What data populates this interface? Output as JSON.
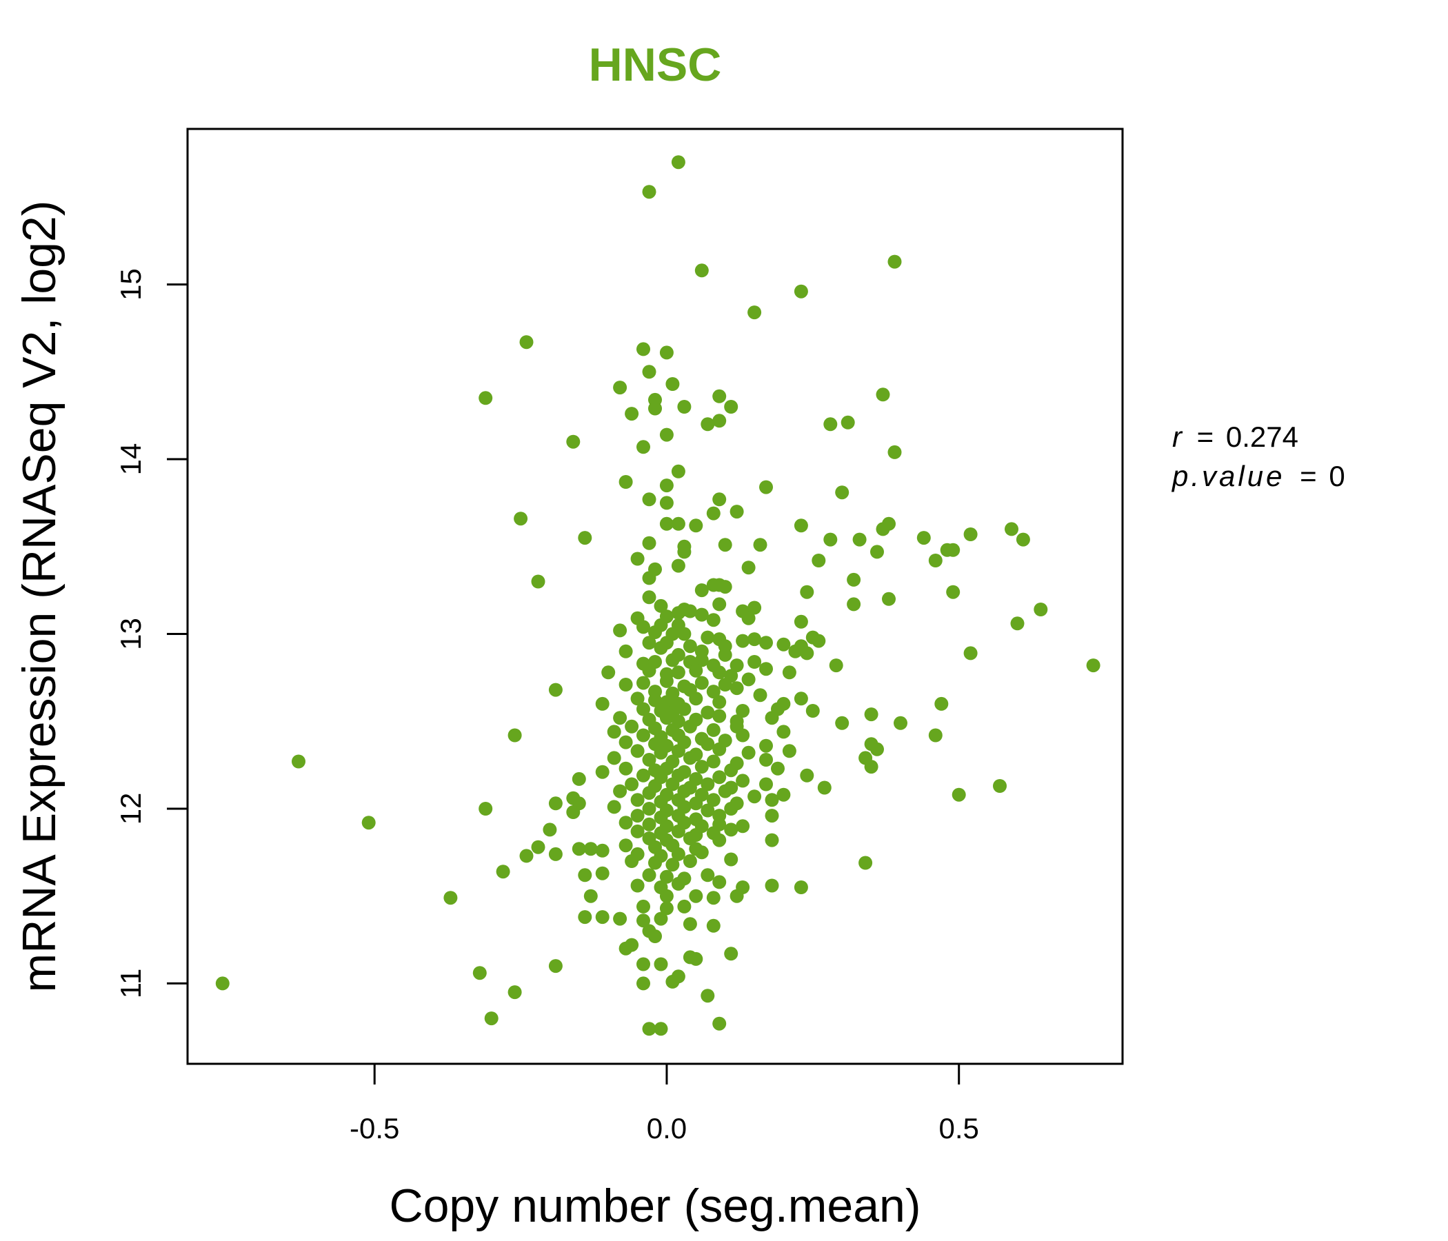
{
  "chart_data": {
    "type": "scatter",
    "title": "HNSC",
    "xlabel": "Copy number (seg.mean)",
    "ylabel": "mRNA Expression (RNASeq V2, log2)",
    "xlim": [
      -0.82,
      0.78
    ],
    "ylim": [
      10.54,
      15.89
    ],
    "xticks": [
      -0.5,
      0.0,
      0.5
    ],
    "xtick_labels": [
      "-0.5",
      "0.0",
      "0.5"
    ],
    "yticks": [
      11,
      12,
      13,
      14,
      15
    ],
    "ytick_labels": [
      "11",
      "12",
      "13",
      "14",
      "15"
    ],
    "grid": false,
    "legend": "none",
    "color": "#66A61E",
    "annotation": {
      "r_label": "r",
      "r_value": "0.274",
      "p_label": "p.value",
      "p_value": "0"
    },
    "points": [
      [
        0.02,
        15.7
      ],
      [
        -0.03,
        15.53
      ],
      [
        0.06,
        15.08
      ],
      [
        0.39,
        15.13
      ],
      [
        0.23,
        14.96
      ],
      [
        0.15,
        14.84
      ],
      [
        -0.24,
        14.67
      ],
      [
        -0.04,
        14.63
      ],
      [
        0.0,
        14.61
      ],
      [
        -0.03,
        14.5
      ],
      [
        0.01,
        14.43
      ],
      [
        -0.08,
        14.41
      ],
      [
        -0.31,
        14.35
      ],
      [
        -0.02,
        14.34
      ],
      [
        0.09,
        14.36
      ],
      [
        0.37,
        14.37
      ],
      [
        0.03,
        14.3
      ],
      [
        -0.02,
        14.29
      ],
      [
        0.11,
        14.3
      ],
      [
        -0.06,
        14.26
      ],
      [
        0.07,
        14.2
      ],
      [
        0.09,
        14.22
      ],
      [
        0.28,
        14.2
      ],
      [
        0.31,
        14.21
      ],
      [
        0.0,
        14.14
      ],
      [
        -0.16,
        14.1
      ],
      [
        -0.04,
        14.07
      ],
      [
        0.39,
        14.04
      ],
      [
        0.02,
        13.93
      ],
      [
        -0.07,
        13.87
      ],
      [
        0.0,
        13.85
      ],
      [
        0.17,
        13.84
      ],
      [
        0.3,
        13.81
      ],
      [
        -0.03,
        13.77
      ],
      [
        0.0,
        13.75
      ],
      [
        0.09,
        13.77
      ],
      [
        0.12,
        13.7
      ],
      [
        0.08,
        13.69
      ],
      [
        -0.25,
        13.66
      ],
      [
        0.0,
        13.63
      ],
      [
        0.02,
        13.63
      ],
      [
        0.05,
        13.62
      ],
      [
        0.23,
        13.62
      ],
      [
        0.38,
        13.63
      ],
      [
        0.37,
        13.6
      ],
      [
        0.59,
        13.6
      ],
      [
        -0.14,
        13.55
      ],
      [
        0.44,
        13.55
      ],
      [
        0.52,
        13.57
      ],
      [
        0.28,
        13.54
      ],
      [
        0.33,
        13.54
      ],
      [
        0.61,
        13.54
      ],
      [
        -0.03,
        13.52
      ],
      [
        0.03,
        13.5
      ],
      [
        0.1,
        13.51
      ],
      [
        0.16,
        13.51
      ],
      [
        0.03,
        13.47
      ],
      [
        0.36,
        13.47
      ],
      [
        0.48,
        13.48
      ],
      [
        0.49,
        13.48
      ],
      [
        -0.05,
        13.43
      ],
      [
        0.26,
        13.42
      ],
      [
        0.46,
        13.42
      ],
      [
        -0.02,
        13.37
      ],
      [
        0.02,
        13.39
      ],
      [
        0.14,
        13.38
      ],
      [
        -0.03,
        13.32
      ],
      [
        -0.22,
        13.3
      ],
      [
        0.32,
        13.31
      ],
      [
        0.08,
        13.28
      ],
      [
        0.09,
        13.28
      ],
      [
        0.1,
        13.27
      ],
      [
        0.06,
        13.25
      ],
      [
        0.24,
        13.24
      ],
      [
        0.49,
        13.24
      ],
      [
        -0.03,
        13.21
      ],
      [
        0.38,
        13.2
      ],
      [
        0.09,
        13.17
      ],
      [
        0.32,
        13.17
      ],
      [
        -0.01,
        13.16
      ],
      [
        0.03,
        13.14
      ],
      [
        0.02,
        13.12
      ],
      [
        0.04,
        13.13
      ],
      [
        0.13,
        13.13
      ],
      [
        0.15,
        13.15
      ],
      [
        0.64,
        13.14
      ],
      [
        -0.05,
        13.09
      ],
      [
        0.0,
        13.1
      ],
      [
        0.06,
        13.11
      ],
      [
        0.08,
        13.08
      ],
      [
        0.14,
        13.09
      ],
      [
        0.23,
        13.07
      ],
      [
        0.6,
        13.06
      ],
      [
        -0.04,
        13.04
      ],
      [
        -0.01,
        13.05
      ],
      [
        0.02,
        13.05
      ],
      [
        -0.08,
        13.02
      ],
      [
        -0.02,
        13.01
      ],
      [
        0.01,
        13.0
      ],
      [
        0.03,
        13.0
      ],
      [
        0.07,
        12.98
      ],
      [
        0.09,
        12.97
      ],
      [
        0.13,
        12.96
      ],
      [
        0.15,
        12.97
      ],
      [
        0.25,
        12.98
      ],
      [
        0.26,
        12.96
      ],
      [
        -0.03,
        12.95
      ],
      [
        0.0,
        12.95
      ],
      [
        0.04,
        12.93
      ],
      [
        0.1,
        12.93
      ],
      [
        0.17,
        12.95
      ],
      [
        0.2,
        12.94
      ],
      [
        0.23,
        12.93
      ],
      [
        -0.07,
        12.9
      ],
      [
        -0.01,
        12.92
      ],
      [
        0.02,
        12.88
      ],
      [
        0.06,
        12.9
      ],
      [
        0.1,
        12.88
      ],
      [
        0.22,
        12.9
      ],
      [
        0.24,
        12.89
      ],
      [
        0.52,
        12.89
      ],
      [
        -0.04,
        12.83
      ],
      [
        -0.02,
        12.84
      ],
      [
        0.01,
        12.85
      ],
      [
        0.04,
        12.84
      ],
      [
        0.06,
        12.85
      ],
      [
        0.08,
        12.82
      ],
      [
        0.12,
        12.82
      ],
      [
        0.15,
        12.84
      ],
      [
        0.29,
        12.82
      ],
      [
        0.73,
        12.82
      ],
      [
        -0.1,
        12.78
      ],
      [
        -0.03,
        12.79
      ],
      [
        0.0,
        12.77
      ],
      [
        0.02,
        12.78
      ],
      [
        0.05,
        12.79
      ],
      [
        0.09,
        12.78
      ],
      [
        0.11,
        12.76
      ],
      [
        0.17,
        12.8
      ],
      [
        0.21,
        12.78
      ],
      [
        -0.07,
        12.71
      ],
      [
        -0.04,
        12.72
      ],
      [
        0.0,
        12.73
      ],
      [
        0.03,
        12.7
      ],
      [
        0.06,
        12.72
      ],
      [
        0.1,
        12.71
      ],
      [
        0.14,
        12.74
      ],
      [
        -0.19,
        12.68
      ],
      [
        -0.02,
        12.67
      ],
      [
        0.01,
        12.66
      ],
      [
        0.04,
        12.68
      ],
      [
        0.08,
        12.67
      ],
      [
        0.12,
        12.69
      ],
      [
        0.16,
        12.65
      ],
      [
        -0.05,
        12.63
      ],
      [
        -0.02,
        12.62
      ],
      [
        0.0,
        12.61
      ],
      [
        0.02,
        12.6
      ],
      [
        0.05,
        12.63
      ],
      [
        0.09,
        12.61
      ],
      [
        0.2,
        12.6
      ],
      [
        0.23,
        12.63
      ],
      [
        0.47,
        12.6
      ],
      [
        -0.11,
        12.6
      ],
      [
        -0.04,
        12.57
      ],
      [
        -0.01,
        12.56
      ],
      [
        0.01,
        12.55
      ],
      [
        0.03,
        12.57
      ],
      [
        0.07,
        12.55
      ],
      [
        0.13,
        12.56
      ],
      [
        0.19,
        12.57
      ],
      [
        0.25,
        12.56
      ],
      [
        -0.08,
        12.52
      ],
      [
        -0.03,
        12.51
      ],
      [
        0.0,
        12.52
      ],
      [
        0.02,
        12.5
      ],
      [
        0.05,
        12.51
      ],
      [
        0.09,
        12.53
      ],
      [
        0.12,
        12.5
      ],
      [
        0.18,
        12.52
      ],
      [
        0.35,
        12.54
      ],
      [
        -0.06,
        12.47
      ],
      [
        -0.02,
        12.46
      ],
      [
        0.01,
        12.45
      ],
      [
        0.04,
        12.47
      ],
      [
        0.08,
        12.45
      ],
      [
        0.12,
        12.47
      ],
      [
        0.3,
        12.49
      ],
      [
        0.4,
        12.49
      ],
      [
        -0.09,
        12.44
      ],
      [
        -0.04,
        12.42
      ],
      [
        -0.01,
        12.41
      ],
      [
        0.02,
        12.42
      ],
      [
        0.06,
        12.4
      ],
      [
        0.13,
        12.42
      ],
      [
        0.2,
        12.44
      ],
      [
        -0.26,
        12.42
      ],
      [
        0.46,
        12.42
      ],
      [
        -0.07,
        12.38
      ],
      [
        -0.02,
        12.37
      ],
      [
        0.0,
        12.36
      ],
      [
        0.03,
        12.38
      ],
      [
        0.07,
        12.37
      ],
      [
        0.1,
        12.39
      ],
      [
        0.17,
        12.36
      ],
      [
        0.35,
        12.37
      ],
      [
        -0.05,
        12.33
      ],
      [
        -0.01,
        12.32
      ],
      [
        0.02,
        12.33
      ],
      [
        0.05,
        12.31
      ],
      [
        0.09,
        12.34
      ],
      [
        0.14,
        12.32
      ],
      [
        0.21,
        12.33
      ],
      [
        0.36,
        12.34
      ],
      [
        -0.09,
        12.29
      ],
      [
        -0.03,
        12.28
      ],
      [
        0.01,
        12.27
      ],
      [
        0.04,
        12.29
      ],
      [
        0.08,
        12.27
      ],
      [
        0.12,
        12.26
      ],
      [
        0.17,
        12.28
      ],
      [
        0.34,
        12.29
      ],
      [
        -0.63,
        12.27
      ],
      [
        -0.07,
        12.23
      ],
      [
        -0.02,
        12.22
      ],
      [
        0.0,
        12.23
      ],
      [
        0.03,
        12.21
      ],
      [
        0.06,
        12.24
      ],
      [
        0.11,
        12.22
      ],
      [
        0.19,
        12.23
      ],
      [
        0.35,
        12.24
      ],
      [
        -0.11,
        12.21
      ],
      [
        -0.04,
        12.19
      ],
      [
        -0.01,
        12.18
      ],
      [
        0.02,
        12.19
      ],
      [
        0.05,
        12.17
      ],
      [
        0.09,
        12.18
      ],
      [
        0.13,
        12.16
      ],
      [
        0.24,
        12.19
      ],
      [
        -0.15,
        12.17
      ],
      [
        -0.06,
        12.14
      ],
      [
        -0.02,
        12.13
      ],
      [
        0.01,
        12.14
      ],
      [
        0.04,
        12.12
      ],
      [
        0.07,
        12.14
      ],
      [
        0.11,
        12.12
      ],
      [
        0.17,
        12.14
      ],
      [
        0.27,
        12.12
      ],
      [
        0.57,
        12.13
      ],
      [
        -0.08,
        12.1
      ],
      [
        -0.03,
        12.09
      ],
      [
        0.0,
        12.08
      ],
      [
        0.03,
        12.1
      ],
      [
        0.06,
        12.08
      ],
      [
        0.1,
        12.1
      ],
      [
        0.15,
        12.07
      ],
      [
        0.2,
        12.08
      ],
      [
        -0.16,
        12.06
      ],
      [
        -0.05,
        12.05
      ],
      [
        -0.01,
        12.04
      ],
      [
        0.02,
        12.05
      ],
      [
        0.05,
        12.03
      ],
      [
        0.08,
        12.05
      ],
      [
        0.12,
        12.03
      ],
      [
        0.18,
        12.05
      ],
      [
        0.5,
        12.08
      ],
      [
        -0.19,
        12.03
      ],
      [
        -0.15,
        12.03
      ],
      [
        -0.09,
        12.01
      ],
      [
        -0.03,
        12.0
      ],
      [
        0.0,
        11.99
      ],
      [
        0.03,
        12.01
      ],
      [
        0.07,
        11.99
      ],
      [
        0.11,
        12.0
      ],
      [
        -0.31,
        12.0
      ],
      [
        -0.16,
        11.98
      ],
      [
        -0.05,
        11.96
      ],
      [
        -0.01,
        11.95
      ],
      [
        0.02,
        11.96
      ],
      [
        0.05,
        11.94
      ],
      [
        0.09,
        11.96
      ],
      [
        0.18,
        11.96
      ],
      [
        -0.51,
        11.92
      ],
      [
        -0.07,
        11.92
      ],
      [
        -0.03,
        11.91
      ],
      [
        0.0,
        11.9
      ],
      [
        0.03,
        11.92
      ],
      [
        0.06,
        11.9
      ],
      [
        0.09,
        11.91
      ],
      [
        0.13,
        11.9
      ],
      [
        -0.2,
        11.88
      ],
      [
        -0.05,
        11.87
      ],
      [
        -0.01,
        11.86
      ],
      [
        0.02,
        11.87
      ],
      [
        0.05,
        11.85
      ],
      [
        0.08,
        11.86
      ],
      [
        0.11,
        11.88
      ],
      [
        -0.03,
        11.83
      ],
      [
        0.0,
        11.82
      ],
      [
        0.04,
        11.83
      ],
      [
        0.09,
        11.82
      ],
      [
        0.18,
        11.82
      ],
      [
        -0.07,
        11.79
      ],
      [
        -0.02,
        11.78
      ],
      [
        0.01,
        11.79
      ],
      [
        0.05,
        11.77
      ],
      [
        -0.22,
        11.78
      ],
      [
        -0.15,
        11.77
      ],
      [
        -0.13,
        11.77
      ],
      [
        -0.11,
        11.76
      ],
      [
        -0.05,
        11.74
      ],
      [
        -0.01,
        11.73
      ],
      [
        0.02,
        11.74
      ],
      [
        0.06,
        11.75
      ],
      [
        0.11,
        11.71
      ],
      [
        -0.19,
        11.74
      ],
      [
        -0.24,
        11.73
      ],
      [
        -0.06,
        11.7
      ],
      [
        -0.02,
        11.69
      ],
      [
        0.01,
        11.68
      ],
      [
        0.04,
        11.7
      ],
      [
        0.34,
        11.69
      ],
      [
        -0.28,
        11.64
      ],
      [
        -0.14,
        11.62
      ],
      [
        -0.11,
        11.63
      ],
      [
        -0.03,
        11.62
      ],
      [
        0.0,
        11.61
      ],
      [
        0.03,
        11.6
      ],
      [
        0.07,
        11.62
      ],
      [
        0.09,
        11.58
      ],
      [
        -0.05,
        11.56
      ],
      [
        -0.01,
        11.55
      ],
      [
        0.02,
        11.57
      ],
      [
        0.13,
        11.55
      ],
      [
        0.18,
        11.56
      ],
      [
        0.23,
        11.55
      ],
      [
        -0.13,
        11.5
      ],
      [
        0.0,
        11.5
      ],
      [
        0.05,
        11.5
      ],
      [
        0.08,
        11.49
      ],
      [
        0.12,
        11.5
      ],
      [
        -0.37,
        11.49
      ],
      [
        -0.04,
        11.44
      ],
      [
        0.0,
        11.43
      ],
      [
        0.03,
        11.44
      ],
      [
        -0.14,
        11.38
      ],
      [
        -0.11,
        11.38
      ],
      [
        -0.08,
        11.37
      ],
      [
        -0.04,
        11.36
      ],
      [
        -0.01,
        11.37
      ],
      [
        0.04,
        11.34
      ],
      [
        0.08,
        11.33
      ],
      [
        -0.03,
        11.3
      ],
      [
        -0.02,
        11.27
      ],
      [
        -0.06,
        11.22
      ],
      [
        -0.07,
        11.2
      ],
      [
        0.04,
        11.15
      ],
      [
        0.05,
        11.14
      ],
      [
        0.11,
        11.17
      ],
      [
        -0.19,
        11.1
      ],
      [
        -0.04,
        11.11
      ],
      [
        -0.01,
        11.11
      ],
      [
        -0.32,
        11.06
      ],
      [
        0.02,
        11.04
      ],
      [
        0.01,
        11.01
      ],
      [
        -0.04,
        11.0
      ],
      [
        -0.76,
        11.0
      ],
      [
        -0.26,
        10.95
      ],
      [
        0.07,
        10.93
      ],
      [
        -0.3,
        10.8
      ],
      [
        0.09,
        10.77
      ],
      [
        -0.03,
        10.74
      ],
      [
        -0.01,
        10.74
      ]
    ]
  }
}
